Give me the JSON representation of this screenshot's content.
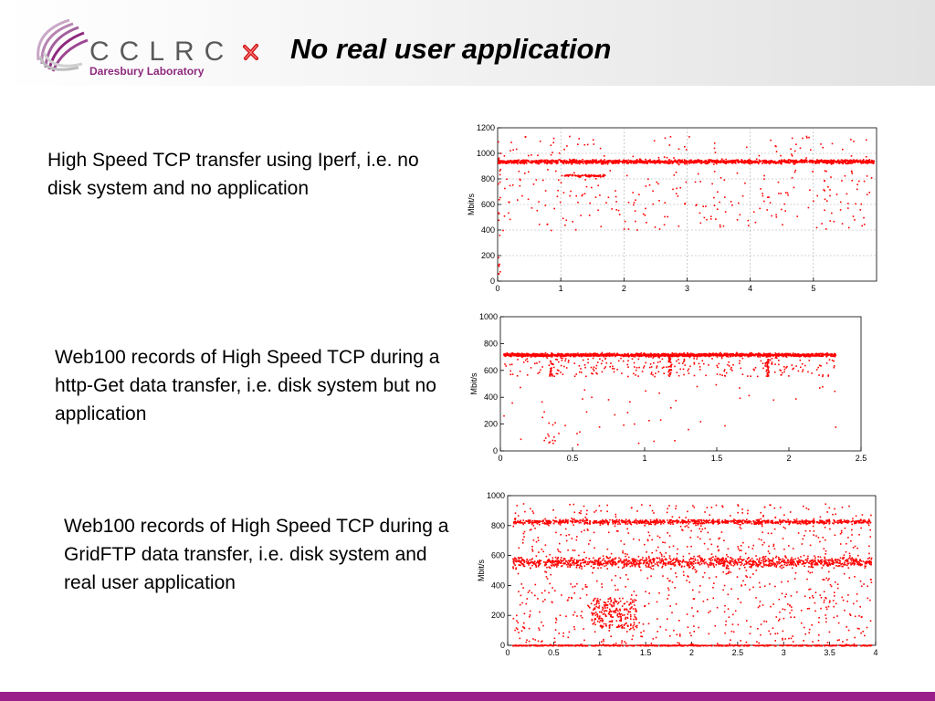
{
  "header": {
    "logo_text": "CCLRC",
    "logo_subtitle": "Daresbury Laboratory",
    "bullet_icon": "red-cross-icon",
    "title": "No real user application"
  },
  "colors": {
    "points": "#ff0000",
    "footer": "#9a1f8a",
    "logo_purple": "#8e2a7e"
  },
  "captions": [
    "High Speed TCP transfer using Iperf, i.e. no disk system and no application",
    "Web100 records of High Speed TCP during a http-Get data transfer, i.e. disk system but no application",
    "Web100 records of High Speed TCP during a GridFTP data transfer, i.e. disk system and real user application"
  ],
  "chart_data": [
    {
      "type": "scatter",
      "title": "",
      "xlabel": "",
      "ylabel": "Mbit/s",
      "xlim": [
        0,
        6
      ],
      "ylim": [
        0,
        1200
      ],
      "xticks": [
        "0",
        "1",
        "2",
        "3",
        "4",
        "5"
      ],
      "yticks": [
        "0",
        "200",
        "400",
        "600",
        "800",
        "1000",
        "1200"
      ],
      "grid": true,
      "series": [
        {
          "values_profile": {
            "band_level": 940,
            "band_spread": 25,
            "secondary_level": 830,
            "x_range": [
              0,
              5.95
            ],
            "scatter_below_to": 400
          }
        }
      ]
    },
    {
      "type": "scatter",
      "title": "",
      "xlabel": "",
      "ylabel": "Mbit/s",
      "xlim": [
        0,
        2.5
      ],
      "ylim": [
        0,
        1000
      ],
      "xticks": [
        "0",
        "0.5",
        "1",
        "1.5",
        "2",
        "2.5"
      ],
      "yticks": [
        "0",
        "200",
        "400",
        "600",
        "800",
        "1000"
      ],
      "grid": false,
      "series": [
        {
          "values_profile": {
            "band_level": 720,
            "band_spread": 20,
            "x_range": [
              0.02,
              2.32
            ],
            "dips_x": [
              0.35,
              1.17,
              1.85
            ],
            "scatter_below_to": 40
          }
        }
      ]
    },
    {
      "type": "scatter",
      "title": "",
      "xlabel": "",
      "ylabel": "Mbit/s",
      "xlim": [
        0,
        4
      ],
      "ylim": [
        0,
        1000
      ],
      "xticks": [
        "0",
        "0.5",
        "1",
        "1.5",
        "2",
        "2.5",
        "3",
        "3.5",
        "4"
      ],
      "yticks": [
        "0",
        "200",
        "400",
        "600",
        "800",
        "1000"
      ],
      "grid": false,
      "series": [
        {
          "values_profile": {
            "levels": [
              830,
              560,
              0
            ],
            "x_range": [
              0.05,
              3.95
            ],
            "uniform_scatter": [
              0,
              950
            ]
          }
        }
      ]
    }
  ]
}
